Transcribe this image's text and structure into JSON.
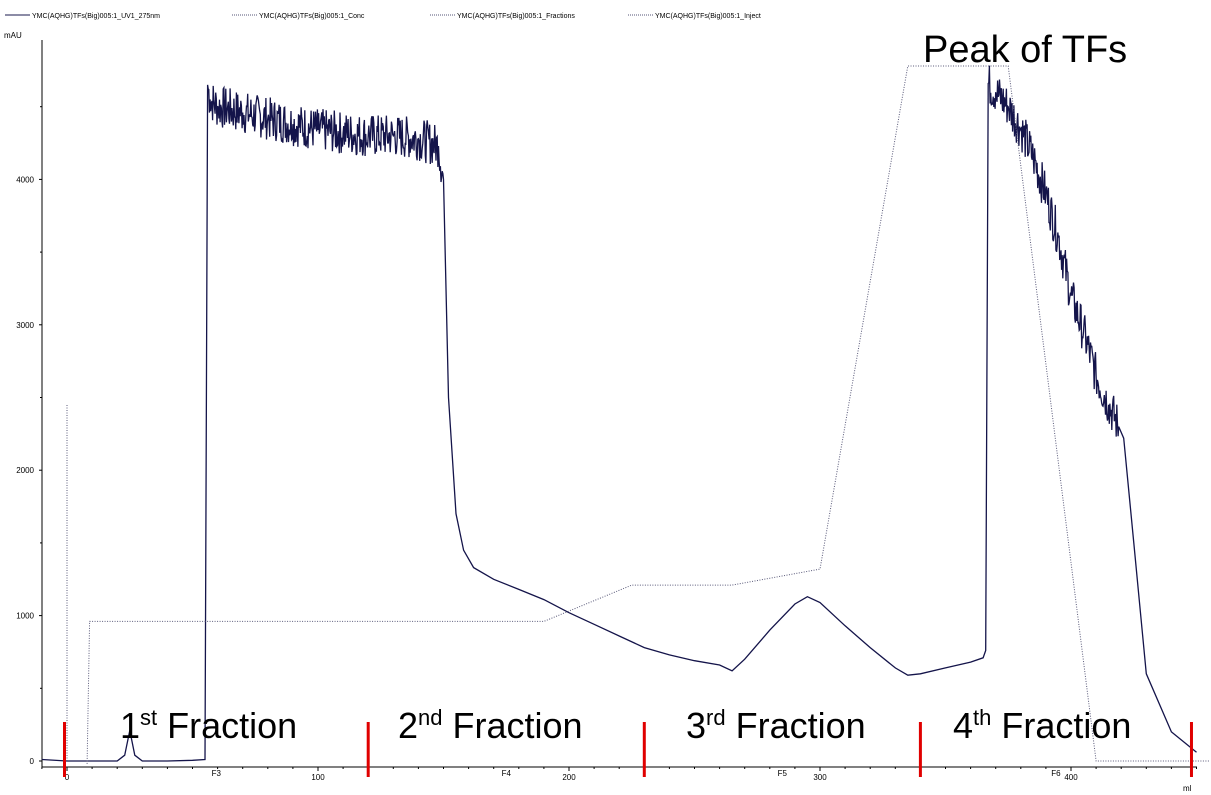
{
  "chart_data": {
    "type": "line",
    "ylabel": "mAU",
    "xlabel": "ml",
    "xlim": [
      -10,
      455
    ],
    "ylim": [
      -20,
      5000
    ],
    "x_ticks": [
      0,
      100,
      200,
      300,
      400
    ],
    "y_ticks": [
      0,
      1000,
      2000,
      3000,
      4000
    ],
    "legend": [
      {
        "name": "YMC(AQHG)TFs(Big)005:1_UV1_275nm",
        "color": "#1a1a4e",
        "style": "solid"
      },
      {
        "name": "YMC(AQHG)TFs(Big)005:1_Conc",
        "color": "#555577",
        "style": "dotted"
      },
      {
        "name": "YMC(AQHG)TFs(Big)005:1_Fractions",
        "color": "#555577",
        "style": "dotted"
      },
      {
        "name": "YMC(AQHG)TFs(Big)005:1_Inject",
        "color": "#555577",
        "style": "dotted"
      }
    ],
    "series": [
      {
        "name": "YMC(AQHG)TFs(Big)005:1_UV1_275nm",
        "noisy_from": 56,
        "noisy_to": 150,
        "noisy_from_2": 367,
        "noisy_to_2": 420,
        "x": [
          -10,
          0,
          10,
          20,
          23,
          25,
          27,
          30,
          40,
          50,
          55,
          56,
          57,
          60,
          70,
          80,
          90,
          100,
          110,
          120,
          130,
          140,
          148,
          150,
          152,
          155,
          158,
          162,
          170,
          180,
          190,
          200,
          210,
          220,
          230,
          240,
          250,
          260,
          265,
          270,
          280,
          290,
          295,
          300,
          310,
          320,
          330,
          335,
          340,
          350,
          360,
          365,
          366,
          367,
          370,
          375,
          380,
          385,
          390,
          395,
          400,
          405,
          410,
          415,
          419,
          421,
          425,
          430,
          440,
          450
        ],
        "y": [
          10,
          0,
          0,
          0,
          40,
          210,
          40,
          0,
          0,
          5,
          10,
          4650,
          4550,
          4500,
          4460,
          4420,
          4380,
          4340,
          4320,
          4300,
          4300,
          4280,
          4230,
          4000,
          2500,
          1700,
          1450,
          1330,
          1250,
          1180,
          1110,
          1020,
          940,
          860,
          780,
          730,
          690,
          660,
          620,
          700,
          900,
          1080,
          1130,
          1090,
          930,
          780,
          640,
          590,
          600,
          640,
          680,
          710,
          760,
          4660,
          4600,
          4500,
          4350,
          4150,
          3900,
          3600,
          3200,
          2950,
          2650,
          2450,
          2300,
          2220,
          1500,
          600,
          200,
          60
        ]
      },
      {
        "name": "YMC(AQHG)TFs(Big)005:1_Conc",
        "x": [
          8,
          9,
          190,
          225,
          265,
          300,
          335,
          345,
          375,
          410,
          455
        ],
        "y": [
          -20,
          960,
          960,
          1210,
          1210,
          1320,
          4780,
          4780,
          4780,
          0,
          0
        ]
      },
      {
        "name": "YMC(AQHG)TFs(Big)005:1_Inject",
        "x": [
          0,
          0
        ],
        "y": [
          0,
          2450
        ]
      }
    ],
    "fractions": {
      "marks": [
        -1,
        120,
        230,
        340,
        448
      ],
      "codes": [
        "F3",
        "F4",
        "F5",
        "F6"
      ]
    },
    "annotations": {
      "fraction_labels": [
        {
          "sup_pre": "1",
          "sup": "st",
          "text": "Fraction"
        },
        {
          "sup_pre": "2",
          "sup": "nd",
          "text": "Fraction"
        },
        {
          "sup_pre": "3",
          "sup": "rd",
          "text": "Fraction"
        },
        {
          "sup_pre": "4",
          "sup": "th",
          "text": "Fraction"
        }
      ],
      "peak_label": "Peak of TFs"
    }
  }
}
